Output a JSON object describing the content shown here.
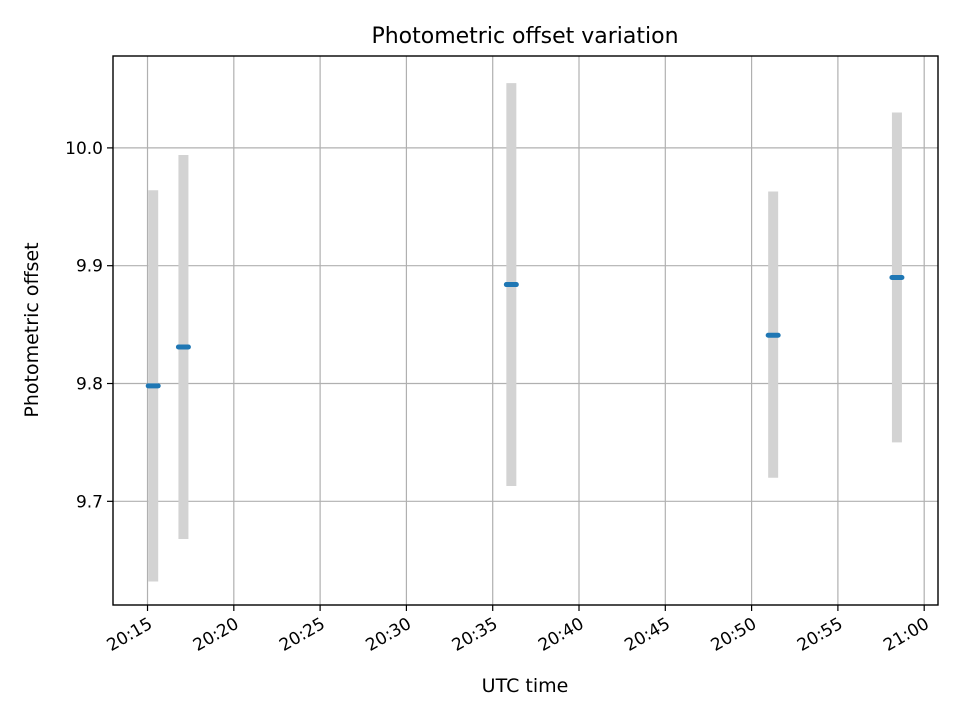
{
  "chart_data": {
    "type": "scatter",
    "title": "Photometric offset variation",
    "xlabel": "UTC time",
    "ylabel": "Photometric offset",
    "x_ticks": [
      "20:15",
      "20:20",
      "20:25",
      "20:30",
      "20:35",
      "20:40",
      "20:45",
      "20:50",
      "20:55",
      "21:00"
    ],
    "x_tick_minutes": [
      15,
      20,
      25,
      30,
      35,
      40,
      45,
      50,
      55,
      60
    ],
    "y_ticks": [
      9.7,
      9.8,
      9.9,
      10.0
    ],
    "y_tick_labels": [
      "9.7",
      "9.8",
      "9.9",
      "10.0"
    ],
    "xlim_minutes": [
      13.0,
      60.8
    ],
    "ylim": [
      9.612,
      10.078
    ],
    "grid": true,
    "colors": {
      "marker": "#1f77b4",
      "errorbar": "#d3d3d3",
      "grid": "#b0b0b0"
    },
    "points": [
      {
        "time": "20:15:20",
        "x_minutes": 15.33,
        "y": 9.798,
        "err_low": 9.632,
        "err_high": 9.964
      },
      {
        "time": "20:17:05",
        "x_minutes": 17.08,
        "y": 9.831,
        "err_low": 9.668,
        "err_high": 9.994
      },
      {
        "time": "20:36:05",
        "x_minutes": 36.08,
        "y": 9.884,
        "err_low": 9.713,
        "err_high": 10.055
      },
      {
        "time": "20:51:15",
        "x_minutes": 51.25,
        "y": 9.841,
        "err_low": 9.72,
        "err_high": 9.963
      },
      {
        "time": "20:58:25",
        "x_minutes": 58.42,
        "y": 9.89,
        "err_low": 9.75,
        "err_high": 10.03
      }
    ]
  }
}
